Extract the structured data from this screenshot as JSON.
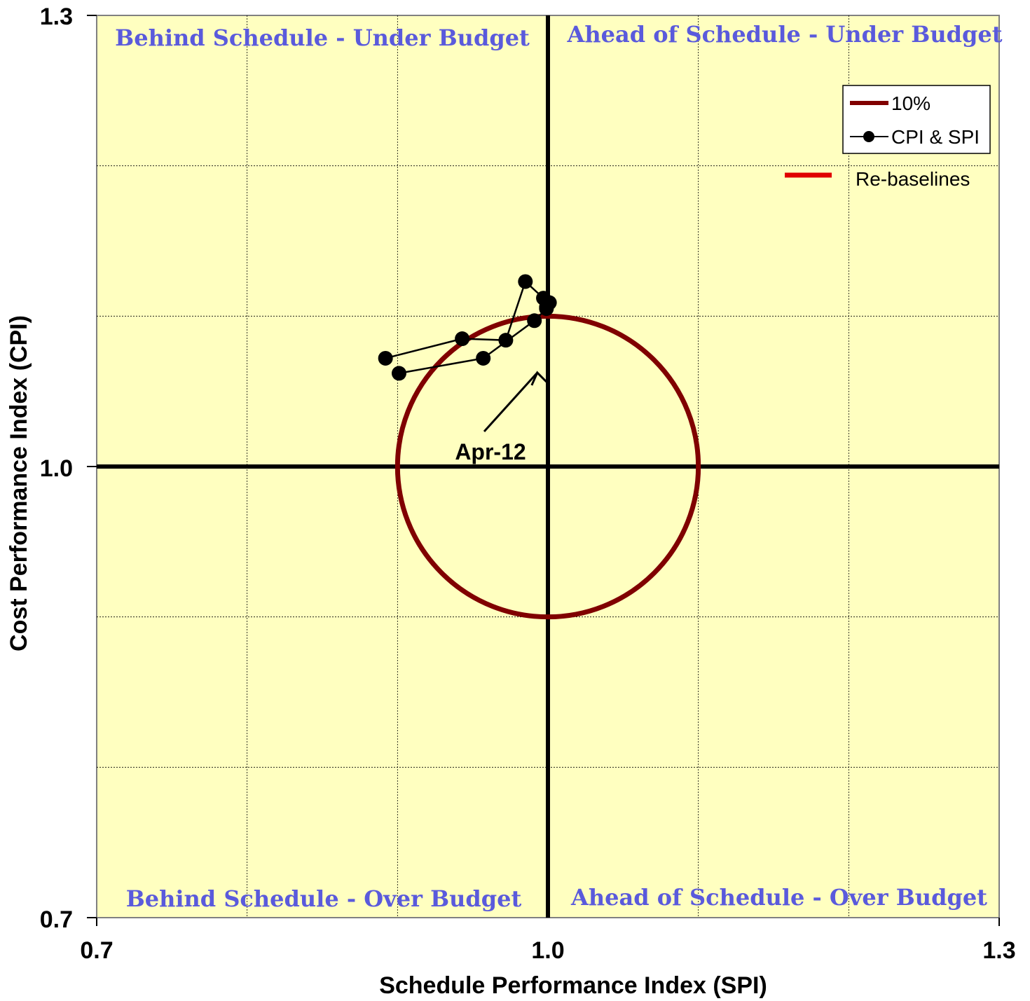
{
  "chart_data": {
    "type": "scatter",
    "xlabel": "Schedule Performance Index (SPI)",
    "ylabel": "Cost Performance Index (CPI)",
    "xlim": [
      0.7,
      1.3
    ],
    "ylim": [
      0.7,
      1.3
    ],
    "x_ticks": [
      "0.7",
      "1.0",
      "1.3"
    ],
    "y_ticks": [
      "1.3",
      "1.0",
      "0.7"
    ],
    "grid": true,
    "background_color": "#ffffc0",
    "quadrant_labels": {
      "top_left": "Behind Schedule - Under Budget",
      "top_right": "Ahead of Schedule - Under Budget",
      "bottom_left": "Behind Schedule - Over Budget",
      "bottom_right": "Ahead of Schedule - Over Budget"
    },
    "threshold_circle": {
      "name": "10%",
      "center": [
        1.0,
        1.0
      ],
      "radius": 0.1,
      "color": "#800000"
    },
    "series": [
      {
        "name": "CPI & SPI",
        "color": "#000000",
        "x": [
          0.901,
          0.957,
          0.991,
          0.999,
          0.999,
          1.001,
          0.997,
          0.985,
          0.972,
          0.943,
          0.892
        ],
        "y": [
          1.062,
          1.072,
          1.097,
          1.105,
          1.106,
          1.109,
          1.112,
          1.123,
          1.084,
          1.085,
          1.072
        ]
      }
    ],
    "legend": {
      "position": "top-right",
      "entries": [
        "10%",
        "CPI & SPI"
      ],
      "extra_entry": {
        "label": "Re-baselines",
        "color": "#e00000"
      }
    },
    "annotations": [
      {
        "text": "Apr-12",
        "points_to": [
          0.999,
          1.068
        ]
      }
    ]
  }
}
